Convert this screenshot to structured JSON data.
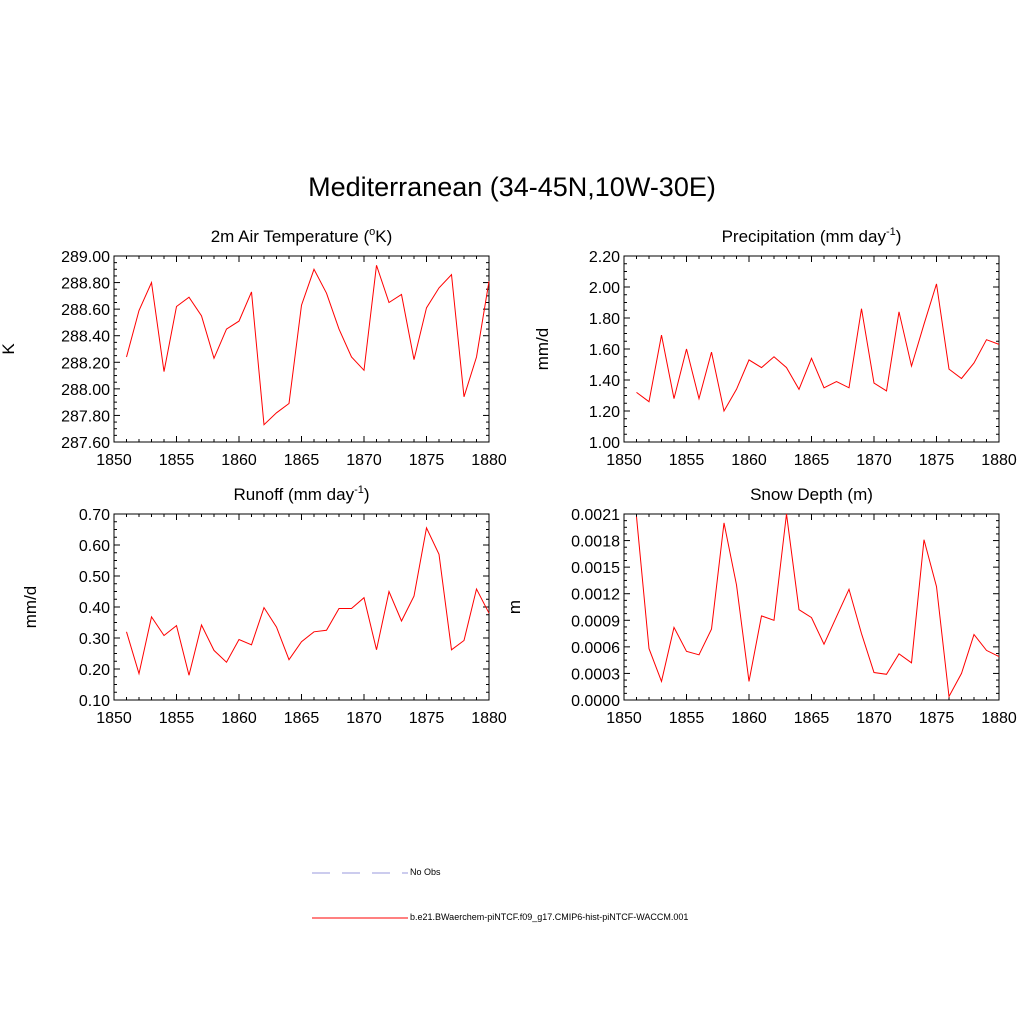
{
  "title": "Mediterranean (34-45N,10W-30E)",
  "legend": {
    "entries": [
      {
        "label": "No Obs",
        "color": "#9999dd",
        "style": "dashed"
      },
      {
        "label": "b.e21.BWaerchem-piNTCF.f09_g17.CMIP6-hist-piNTCF-WACCM.001",
        "color": "#ff0000",
        "style": "solid"
      }
    ]
  },
  "chart_data": [
    {
      "type": "line",
      "title": "2m Air Temperature (",
      "title_sup": "o",
      "title_after": "K)",
      "ylabel": "K",
      "xlim": [
        1850,
        1880
      ],
      "ylim": [
        287.6,
        289.0
      ],
      "xticks": [
        "1850",
        "1855",
        "1860",
        "1865",
        "1870",
        "1875",
        "1880"
      ],
      "yticks": [
        "287.60",
        "287.80",
        "288.00",
        "288.20",
        "288.40",
        "288.60",
        "288.80",
        "289.00"
      ],
      "series": [
        {
          "color": "#ff0000",
          "x": [
            1851,
            1852,
            1853,
            1854,
            1855,
            1856,
            1857,
            1858,
            1859,
            1860,
            1861,
            1862,
            1863,
            1864,
            1865,
            1866,
            1867,
            1868,
            1869,
            1870,
            1871,
            1872,
            1873,
            1874,
            1875,
            1876,
            1877,
            1878,
            1879,
            1880
          ],
          "values": [
            288.24,
            288.59,
            288.8,
            288.13,
            288.62,
            288.69,
            288.55,
            288.23,
            288.45,
            288.51,
            288.73,
            287.73,
            287.82,
            287.89,
            288.63,
            288.9,
            288.72,
            288.45,
            288.24,
            288.14,
            288.93,
            288.65,
            288.71,
            288.22,
            288.61,
            288.76,
            288.86,
            287.94,
            288.24,
            288.81
          ]
        }
      ]
    },
    {
      "type": "line",
      "title": "Precipitation (mm day",
      "title_sup": "-1",
      "title_after": ")",
      "ylabel": "mm/d",
      "xlim": [
        1850,
        1880
      ],
      "ylim": [
        1.0,
        2.2
      ],
      "xticks": [
        "1850",
        "1855",
        "1860",
        "1865",
        "1870",
        "1875",
        "1880"
      ],
      "yticks": [
        "1.00",
        "1.20",
        "1.40",
        "1.60",
        "1.80",
        "2.00",
        "2.20"
      ],
      "series": [
        {
          "color": "#ff0000",
          "x": [
            1851,
            1852,
            1853,
            1854,
            1855,
            1856,
            1857,
            1858,
            1859,
            1860,
            1861,
            1862,
            1863,
            1864,
            1865,
            1866,
            1867,
            1868,
            1869,
            1870,
            1871,
            1872,
            1873,
            1874,
            1875,
            1876,
            1877,
            1878,
            1879,
            1880
          ],
          "values": [
            1.32,
            1.26,
            1.69,
            1.28,
            1.6,
            1.28,
            1.58,
            1.2,
            1.34,
            1.53,
            1.48,
            1.55,
            1.48,
            1.34,
            1.54,
            1.35,
            1.39,
            1.35,
            1.86,
            1.38,
            1.33,
            1.84,
            1.49,
            1.76,
            2.02,
            1.47,
            1.41,
            1.51,
            1.66,
            1.63
          ]
        }
      ]
    },
    {
      "type": "line",
      "title": "Runoff (mm day",
      "title_sup": "-1",
      "title_after": ")",
      "ylabel": "mm/d",
      "xlim": [
        1850,
        1880
      ],
      "ylim": [
        0.1,
        0.7
      ],
      "xticks": [
        "1850",
        "1855",
        "1860",
        "1865",
        "1870",
        "1875",
        "1880"
      ],
      "yticks": [
        "0.10",
        "0.20",
        "0.30",
        "0.40",
        "0.50",
        "0.60",
        "0.70"
      ],
      "series": [
        {
          "color": "#ff0000",
          "x": [
            1851,
            1852,
            1853,
            1854,
            1855,
            1856,
            1857,
            1858,
            1859,
            1860,
            1861,
            1862,
            1863,
            1864,
            1865,
            1866,
            1867,
            1868,
            1869,
            1870,
            1871,
            1872,
            1873,
            1874,
            1875,
            1876,
            1877,
            1878,
            1879,
            1880
          ],
          "values": [
            0.32,
            0.185,
            0.368,
            0.308,
            0.34,
            0.18,
            0.342,
            0.26,
            0.222,
            0.295,
            0.278,
            0.398,
            0.335,
            0.23,
            0.288,
            0.32,
            0.325,
            0.395,
            0.395,
            0.43,
            0.262,
            0.45,
            0.355,
            0.435,
            0.655,
            0.57,
            0.262,
            0.292,
            0.458,
            0.38
          ]
        }
      ]
    },
    {
      "type": "line",
      "title": "Snow Depth (m)",
      "title_sup": "",
      "title_after": "",
      "ylabel": "m",
      "xlim": [
        1850,
        1880
      ],
      "ylim": [
        0.0,
        0.0021
      ],
      "xticks": [
        "1850",
        "1855",
        "1860",
        "1865",
        "1870",
        "1875",
        "1880"
      ],
      "yticks": [
        "0.0000",
        "0.0003",
        "0.0006",
        "0.0009",
        "0.0012",
        "0.0015",
        "0.0018",
        "0.0021"
      ],
      "series": [
        {
          "color": "#ff0000",
          "x": [
            1851,
            1852,
            1853,
            1854,
            1855,
            1856,
            1857,
            1858,
            1859,
            1860,
            1861,
            1862,
            1863,
            1864,
            1865,
            1866,
            1867,
            1868,
            1869,
            1870,
            1871,
            1872,
            1873,
            1874,
            1875,
            1876,
            1877,
            1878,
            1879,
            1880
          ],
          "values": [
            0.00207,
            0.00058,
            0.00021,
            0.00082,
            0.00055,
            0.00051,
            0.0008,
            0.002,
            0.0013,
            0.00021,
            0.00095,
            0.0009,
            0.0021,
            0.00102,
            0.00093,
            0.00063,
            0.00094,
            0.00125,
            0.00075,
            0.00031,
            0.00029,
            0.00052,
            0.00042,
            0.00181,
            0.00128,
            4e-05,
            0.0003,
            0.00074,
            0.00056,
            0.00049
          ]
        }
      ]
    }
  ]
}
